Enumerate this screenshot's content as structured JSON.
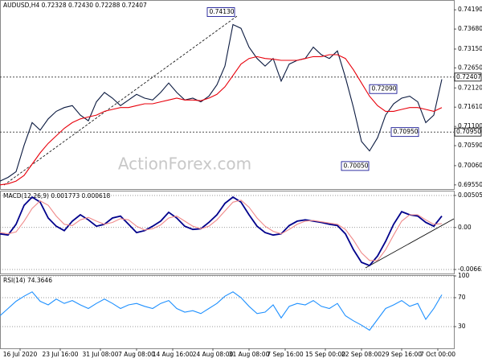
{
  "chart_data": [
    {
      "type": "line",
      "title": "AUDUSD,H4 0.72328 0.72430 0.72288 0.72407",
      "watermark": "ActionForex.com",
      "x": [
        0,
        1,
        2,
        3,
        4,
        5,
        6,
        7,
        8,
        9,
        10,
        11,
        12,
        13,
        14,
        15,
        16,
        17,
        18,
        19,
        20,
        21,
        22,
        23,
        24,
        25,
        26,
        27,
        28,
        29,
        30,
        31,
        32,
        33,
        34,
        35,
        36,
        37,
        38,
        39,
        40,
        41,
        42,
        43,
        44,
        45,
        46,
        47,
        48,
        49,
        50,
        51,
        52,
        53,
        54,
        55
      ],
      "xlim": [
        0,
        56.5
      ],
      "ylim": [
        0.6944,
        0.7445
      ],
      "yticks": [
        {
          "value": 0.7419,
          "label": "0.74190"
        },
        {
          "value": 0.7368,
          "label": "0.73680"
        },
        {
          "value": 0.7315,
          "label": "0.73150"
        },
        {
          "value": 0.7265,
          "label": "0.72650"
        },
        {
          "value": 0.7212,
          "label": "0.72120"
        },
        {
          "value": 0.7161,
          "label": "0.71610"
        },
        {
          "value": 0.711,
          "label": "0.71100"
        },
        {
          "value": 0.7059,
          "label": "0.70590"
        },
        {
          "value": 0.7006,
          "label": "0.70060"
        },
        {
          "value": 0.6955,
          "label": "0.69550"
        }
      ],
      "grid": false,
      "series": [
        {
          "name": "AUDUSD",
          "color": "#0b1a40",
          "values": [
            0.6965,
            0.6975,
            0.699,
            0.706,
            0.712,
            0.71,
            0.713,
            0.715,
            0.716,
            0.7165,
            0.714,
            0.7125,
            0.7175,
            0.72,
            0.7185,
            0.7165,
            0.718,
            0.7195,
            0.7185,
            0.718,
            0.72,
            0.7225,
            0.72,
            0.718,
            0.7185,
            0.7175,
            0.719,
            0.722,
            0.727,
            0.738,
            0.737,
            0.732,
            0.729,
            0.727,
            0.729,
            0.723,
            0.7275,
            0.7285,
            0.729,
            0.732,
            0.73,
            0.729,
            0.731,
            0.724,
            0.716,
            0.707,
            0.7045,
            0.708,
            0.714,
            0.717,
            0.7185,
            0.719,
            0.7175,
            0.712,
            0.714,
            0.7235
          ]
        },
        {
          "name": "MA",
          "color": "#e8000b",
          "values": [
            0.6955,
            0.6958,
            0.6965,
            0.698,
            0.701,
            0.704,
            0.7065,
            0.7085,
            0.7105,
            0.712,
            0.713,
            0.7135,
            0.714,
            0.715,
            0.7155,
            0.716,
            0.716,
            0.7165,
            0.717,
            0.717,
            0.7175,
            0.718,
            0.7185,
            0.718,
            0.718,
            0.7178,
            0.7185,
            0.7195,
            0.7215,
            0.7245,
            0.7275,
            0.729,
            0.7295,
            0.729,
            0.7288,
            0.7285,
            0.7285,
            0.7285,
            0.729,
            0.7295,
            0.7295,
            0.73,
            0.73,
            0.729,
            0.726,
            0.7225,
            0.719,
            0.7165,
            0.715,
            0.715,
            0.7155,
            0.716,
            0.716,
            0.7155,
            0.715,
            0.716
          ]
        }
      ],
      "annotations": [
        {
          "value": 0.7413,
          "label": "0.74130",
          "x": 25.8
        },
        {
          "value": 0.7209,
          "label": "0.72090",
          "x": 46
        },
        {
          "value": 0.7095,
          "label": "0.70950",
          "x": 48.7
        },
        {
          "value": 0.7005,
          "label": "0.70050",
          "x": 42.5
        }
      ],
      "price_lines": [
        {
          "value": 0.72407,
          "label": "0.72407"
        },
        {
          "value": 0.7095,
          "label": "0.70950"
        }
      ]
    },
    {
      "type": "line",
      "title": "MACD(12,26,9) 0.001773 0.000618",
      "x": [
        0,
        1,
        2,
        3,
        4,
        5,
        6,
        7,
        8,
        9,
        10,
        11,
        12,
        13,
        14,
        15,
        16,
        17,
        18,
        19,
        20,
        21,
        22,
        23,
        24,
        25,
        26,
        27,
        28,
        29,
        30,
        31,
        32,
        33,
        34,
        35,
        36,
        37,
        38,
        39,
        40,
        41,
        42,
        43,
        44,
        45,
        46,
        47,
        48,
        49,
        50,
        51,
        52,
        53,
        54,
        55
      ],
      "xlim": [
        0,
        56.5
      ],
      "ylim": [
        -0.00726,
        0.00581
      ],
      "yticks": [
        0.005052,
        {
          "value": 0,
          "label": "0.00"
        },
        -0.006629
      ],
      "grid": true,
      "series": [
        {
          "name": "MACD",
          "color": "#00008b",
          "values": [
            -0.001,
            -0.0012,
            0.0005,
            0.0035,
            0.0048,
            0.004,
            0.0015,
            0.0002,
            -0.0005,
            0.001,
            0.002,
            0.0012,
            0.0002,
            0.0005,
            0.0015,
            0.0018,
            0.0005,
            -0.0008,
            -0.0005,
            0.0002,
            0.001,
            0.0024,
            0.0015,
            0.0002,
            -0.0003,
            -0.0002,
            0.0008,
            0.002,
            0.0038,
            0.0048,
            0.004,
            0.002,
            0.0002,
            -0.0008,
            -0.0012,
            -0.001,
            0.0003,
            0.001,
            0.0012,
            0.001,
            0.0008,
            0.0005,
            0.0003,
            -0.001,
            -0.0035,
            -0.0055,
            -0.006,
            -0.0045,
            -0.0022,
            0.0005,
            0.0025,
            0.002,
            0.0018,
            0.0008,
            0.0002,
            0.0018
          ]
        },
        {
          "name": "Signal",
          "color": "#f08a8a",
          "values": [
            -0.0008,
            -0.001,
            -0.0007,
            0.001,
            0.003,
            0.0042,
            0.0035,
            0.0018,
            0.0005,
            0.0003,
            0.0012,
            0.0016,
            0.001,
            0.0005,
            0.0008,
            0.0014,
            0.0012,
            0.0002,
            -0.0004,
            -0.0002,
            0.0004,
            0.0015,
            0.0018,
            0.001,
            0.0002,
            -0.0002,
            0.0002,
            0.0012,
            0.0026,
            0.004,
            0.0043,
            0.0032,
            0.0015,
            0.0002,
            -0.0006,
            -0.001,
            -0.0003,
            0.0005,
            0.001,
            0.0011,
            0.0009,
            0.0007,
            0.0005,
            -0.0003,
            -0.002,
            -0.004,
            -0.0052,
            -0.0052,
            -0.0035,
            -0.0012,
            0.001,
            0.002,
            0.002,
            0.0012,
            0.0005,
            0.0006
          ]
        }
      ]
    },
    {
      "type": "line",
      "title": "RSI(14) 74.3646",
      "x": [
        0,
        1,
        2,
        3,
        4,
        5,
        6,
        7,
        8,
        9,
        10,
        11,
        12,
        13,
        14,
        15,
        16,
        17,
        18,
        19,
        20,
        21,
        22,
        23,
        24,
        25,
        26,
        27,
        28,
        29,
        30,
        31,
        32,
        33,
        34,
        35,
        36,
        37,
        38,
        39,
        40,
        41,
        42,
        43,
        44,
        45,
        46,
        47,
        48,
        49,
        50,
        51,
        52,
        53,
        54,
        55
      ],
      "xlim": [
        0,
        56.5
      ],
      "ylim": [
        0,
        100
      ],
      "yticks": [
        100,
        70,
        30
      ],
      "grid": true,
      "xticks": [
        {
          "value": 2.5,
          "label": "16 Jul 2020"
        },
        {
          "value": 7.5,
          "label": "23 Jul 16:00"
        },
        {
          "value": 12.5,
          "label": "31 Jul 08:00"
        },
        {
          "value": 17,
          "label": "7 Aug 08:00"
        },
        {
          "value": 21.5,
          "label": "14 Aug 16:00"
        },
        {
          "value": 26.5,
          "label": "24 Aug 08:00"
        },
        {
          "value": 31,
          "label": "31 Aug 08:00"
        },
        {
          "value": 35.5,
          "label": "7 Sep 16:00"
        },
        {
          "value": 40.5,
          "label": "15 Sep 00:00"
        },
        {
          "value": 45,
          "label": "22 Sep 08:00"
        },
        {
          "value": 50,
          "label": "29 Sep 16:00"
        },
        {
          "value": 54.5,
          "label": "7 Oct 00:00"
        }
      ],
      "series": [
        {
          "name": "RSI",
          "color": "#1e90ff",
          "values": [
            45,
            55,
            65,
            72,
            78,
            65,
            60,
            68,
            62,
            66,
            60,
            55,
            62,
            68,
            62,
            55,
            60,
            62,
            58,
            55,
            62,
            66,
            55,
            50,
            52,
            48,
            55,
            62,
            72,
            78,
            70,
            58,
            48,
            50,
            60,
            42,
            58,
            62,
            60,
            66,
            58,
            55,
            62,
            45,
            38,
            32,
            25,
            40,
            55,
            60,
            66,
            58,
            62,
            40,
            55,
            74
          ]
        }
      ]
    }
  ]
}
